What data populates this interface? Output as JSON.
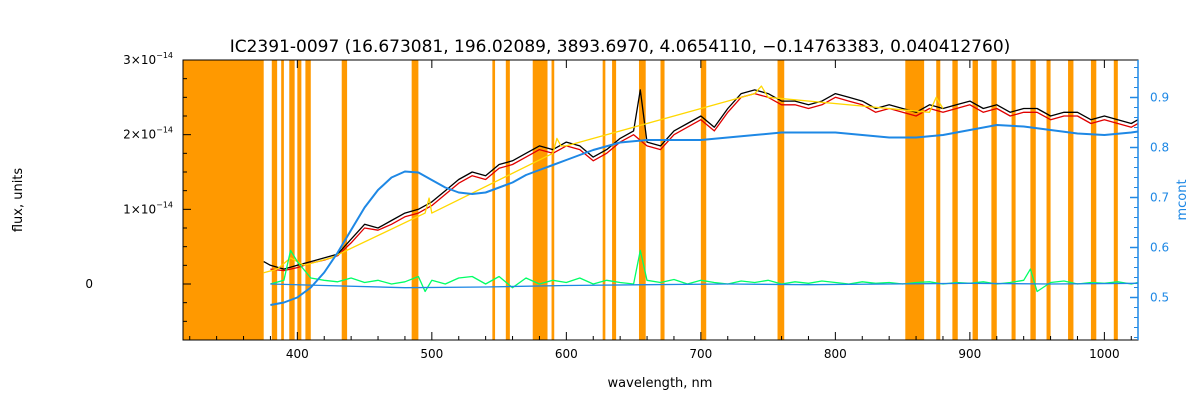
{
  "chart_data": {
    "type": "line",
    "title": "IC2391-0097   (16.673081, 196.02089, 3893.6970, 4.0654110, −0.14763383, 0.040412760)",
    "xlabel": "wavelength, nm",
    "ylabel": "flux, units",
    "y2label": "mcont",
    "xlim": [
      315,
      1025
    ],
    "ylim": [
      -7.5e-15,
      3e-14
    ],
    "y2lim": [
      0.415,
      0.975
    ],
    "x_ticks": [
      400,
      500,
      600,
      700,
      800,
      900,
      1000
    ],
    "x_tick_labels": [
      "400",
      "500",
      "600",
      "700",
      "800",
      "900",
      "1000"
    ],
    "y_ticks": [
      0,
      1e-14,
      2e-14,
      3e-14
    ],
    "y_tick_labels": [
      {
        "mant": "0",
        "exp": ""
      },
      {
        "mant": "1×10",
        "exp": "−14"
      },
      {
        "mant": "2×10",
        "exp": "−14"
      },
      {
        "mant": "3×10",
        "exp": "−14"
      }
    ],
    "y2_ticks": [
      0.5,
      0.6,
      0.7,
      0.8,
      0.9
    ],
    "y2_tick_labels": [
      "0.5",
      "0.6",
      "0.7",
      "0.8",
      "0.9"
    ],
    "grid": false,
    "masked_regions_nm": [
      [
        315,
        375
      ],
      [
        381,
        385
      ],
      [
        388,
        390
      ],
      [
        394,
        398
      ],
      [
        400,
        403
      ],
      [
        406,
        410
      ],
      [
        433,
        437
      ],
      [
        485,
        490
      ],
      [
        545,
        547
      ],
      [
        555,
        558
      ],
      [
        575,
        586
      ],
      [
        589,
        591
      ],
      [
        627,
        629
      ],
      [
        634,
        637
      ],
      [
        654,
        659
      ],
      [
        670,
        673
      ],
      [
        700,
        704
      ],
      [
        757,
        762
      ],
      [
        852,
        866
      ],
      [
        875,
        878
      ],
      [
        887,
        891
      ],
      [
        902,
        906
      ],
      [
        916,
        920
      ],
      [
        931,
        934
      ],
      [
        945,
        949
      ],
      [
        957,
        960
      ],
      [
        973,
        977
      ],
      [
        990,
        994
      ],
      [
        1007,
        1010
      ]
    ],
    "series": [
      {
        "color": "#000000",
        "x": [
          375,
          380,
          390,
          400,
          410,
          420,
          430,
          440,
          450,
          460,
          470,
          480,
          490,
          500,
          510,
          520,
          530,
          540,
          550,
          560,
          570,
          580,
          590,
          600,
          610,
          620,
          630,
          640,
          650,
          655,
          660,
          670,
          680,
          690,
          700,
          710,
          720,
          730,
          740,
          750,
          760,
          770,
          780,
          790,
          800,
          810,
          820,
          830,
          840,
          850,
          860,
          870,
          880,
          890,
          900,
          910,
          920,
          930,
          940,
          950,
          960,
          970,
          980,
          990,
          1000,
          1010,
          1020,
          1025
        ],
        "y": [
          3e-15,
          2.5e-15,
          2e-15,
          2.5e-15,
          3e-15,
          3.5e-15,
          4e-15,
          6e-15,
          8e-15,
          7.5e-15,
          8.5e-15,
          9.5e-15,
          1e-14,
          1.1e-14,
          1.25e-14,
          1.4e-14,
          1.5e-14,
          1.45e-14,
          1.6e-14,
          1.65e-14,
          1.75e-14,
          1.85e-14,
          1.8e-14,
          1.9e-14,
          1.85e-14,
          1.7e-14,
          1.8e-14,
          1.95e-14,
          2.05e-14,
          2.6e-14,
          1.9e-14,
          1.85e-14,
          2.05e-14,
          2.15e-14,
          2.25e-14,
          2.1e-14,
          2.35e-14,
          2.55e-14,
          2.6e-14,
          2.55e-14,
          2.45e-14,
          2.45e-14,
          2.4e-14,
          2.45e-14,
          2.55e-14,
          2.5e-14,
          2.45e-14,
          2.35e-14,
          2.4e-14,
          2.35e-14,
          2.3e-14,
          2.4e-14,
          2.35e-14,
          2.4e-14,
          2.45e-14,
          2.35e-14,
          2.4e-14,
          2.3e-14,
          2.35e-14,
          2.35e-14,
          2.25e-14,
          2.3e-14,
          2.3e-14,
          2.2e-14,
          2.25e-14,
          2.2e-14,
          2.15e-14,
          2.2e-14
        ]
      },
      {
        "color": "#e00000",
        "x": [
          380,
          390,
          400,
          410,
          420,
          430,
          440,
          450,
          460,
          470,
          480,
          490,
          500,
          510,
          520,
          530,
          540,
          550,
          560,
          570,
          580,
          590,
          600,
          610,
          620,
          630,
          640,
          650,
          660,
          670,
          680,
          690,
          700,
          710,
          720,
          730,
          740,
          750,
          760,
          770,
          780,
          790,
          800,
          810,
          820,
          830,
          840,
          850,
          860,
          870,
          880,
          890,
          900,
          910,
          920,
          930,
          940,
          950,
          960,
          970,
          980,
          990,
          1000,
          1010,
          1020,
          1025
        ],
        "y": [
          2e-15,
          1.8e-15,
          2.2e-15,
          2.8e-15,
          3.2e-15,
          3.8e-15,
          5.5e-15,
          7.5e-15,
          7.2e-15,
          8e-15,
          9e-15,
          9.5e-15,
          1.05e-14,
          1.2e-14,
          1.35e-14,
          1.45e-14,
          1.4e-14,
          1.55e-14,
          1.6e-14,
          1.7e-14,
          1.8e-14,
          1.75e-14,
          1.85e-14,
          1.8e-14,
          1.65e-14,
          1.75e-14,
          1.9e-14,
          2e-14,
          1.85e-14,
          1.8e-14,
          2e-14,
          2.1e-14,
          2.2e-14,
          2.05e-14,
          2.3e-14,
          2.5e-14,
          2.55e-14,
          2.5e-14,
          2.4e-14,
          2.4e-14,
          2.35e-14,
          2.4e-14,
          2.5e-14,
          2.45e-14,
          2.4e-14,
          2.3e-14,
          2.35e-14,
          2.3e-14,
          2.25e-14,
          2.35e-14,
          2.3e-14,
          2.35e-14,
          2.4e-14,
          2.3e-14,
          2.35e-14,
          2.25e-14,
          2.3e-14,
          2.3e-14,
          2.2e-14,
          2.25e-14,
          2.25e-14,
          2.15e-14,
          2.2e-14,
          2.15e-14,
          2.1e-14,
          2.15e-14
        ]
      },
      {
        "color": "#ffd800",
        "x": [
          375,
          385,
          395,
          405,
          415,
          425,
          495,
          498,
          500,
          590,
          593,
          596,
          600,
          740,
          745,
          750,
          870,
          875,
          880
        ],
        "y": [
          1.5e-15,
          2e-15,
          3.5e-15,
          2.5e-15,
          3e-15,
          3.5e-15,
          9.5e-15,
          1.15e-14,
          9.5e-15,
          1.75e-14,
          1.95e-14,
          1.85e-14,
          1.85e-14,
          2.55e-14,
          2.65e-14,
          2.5e-14,
          2.3e-14,
          2.5e-14,
          2.35e-14
        ]
      },
      {
        "color": "#00ff66",
        "x": [
          380,
          390,
          395,
          400,
          410,
          420,
          430,
          440,
          450,
          460,
          470,
          480,
          490,
          495,
          500,
          510,
          520,
          530,
          540,
          550,
          560,
          570,
          580,
          590,
          600,
          610,
          620,
          630,
          640,
          650,
          655,
          660,
          670,
          680,
          690,
          700,
          710,
          720,
          730,
          740,
          750,
          760,
          770,
          780,
          790,
          800,
          810,
          820,
          830,
          840,
          850,
          860,
          870,
          880,
          890,
          900,
          910,
          920,
          930,
          940,
          945,
          950,
          960,
          970,
          980,
          990,
          1000,
          1010,
          1020,
          1025
        ],
        "y": [
          0.0,
          5e-16,
          4.5e-15,
          3e-15,
          8e-16,
          5e-16,
          3e-16,
          8e-16,
          2e-16,
          5e-16,
          0.0,
          3e-16,
          1e-15,
          -1e-15,
          5e-16,
          0.0,
          8e-16,
          1e-15,
          0.0,
          1e-15,
          -5e-16,
          8e-16,
          0.0,
          5e-16,
          2e-16,
          8e-16,
          0.0,
          5e-16,
          2e-16,
          0.0,
          4.5e-15,
          5e-16,
          2e-16,
          6e-16,
          0.0,
          5e-16,
          2e-16,
          0.0,
          4e-16,
          2e-16,
          5e-16,
          0.0,
          3e-16,
          1e-16,
          4e-16,
          2e-16,
          0.0,
          3e-16,
          1e-16,
          2e-16,
          0.0,
          2e-16,
          3e-16,
          0.0,
          2e-16,
          1e-16,
          3e-16,
          0.0,
          2e-16,
          5e-16,
          2e-15,
          -1e-15,
          2e-16,
          4e-16,
          0.0,
          2e-16,
          1e-16,
          3e-16,
          0.0,
          2e-16
        ]
      },
      {
        "color": "#1e88e5",
        "axis": "mcont",
        "x": [
          380,
          390,
          400,
          410,
          420,
          430,
          440,
          450,
          460,
          470,
          480,
          490,
          500,
          510,
          520,
          530,
          540,
          550,
          560,
          570,
          580,
          590,
          600,
          620,
          640,
          660,
          680,
          700,
          720,
          740,
          760,
          780,
          800,
          820,
          840,
          860,
          880,
          900,
          920,
          940,
          960,
          980,
          1000,
          1020,
          1025
        ],
        "y": [
          0.485,
          0.49,
          0.5,
          0.52,
          0.55,
          0.59,
          0.635,
          0.68,
          0.715,
          0.74,
          0.752,
          0.75,
          0.735,
          0.72,
          0.71,
          0.707,
          0.71,
          0.72,
          0.73,
          0.745,
          0.755,
          0.765,
          0.775,
          0.795,
          0.81,
          0.815,
          0.815,
          0.815,
          0.82,
          0.825,
          0.83,
          0.83,
          0.83,
          0.825,
          0.82,
          0.82,
          0.825,
          0.835,
          0.845,
          0.842,
          0.835,
          0.828,
          0.825,
          0.83,
          0.832
        ]
      },
      {
        "color": "#1e88e5",
        "x": [
          380,
          420,
          480,
          540,
          600,
          660,
          720,
          780,
          840,
          900,
          960,
          1025
        ],
        "y": [
          0.0,
          -2e-16,
          -5e-16,
          -4e-16,
          -2e-16,
          -1e-16,
          0.0,
          -1e-16,
          0.0,
          1e-16,
          0.0,
          1e-16
        ]
      }
    ]
  }
}
